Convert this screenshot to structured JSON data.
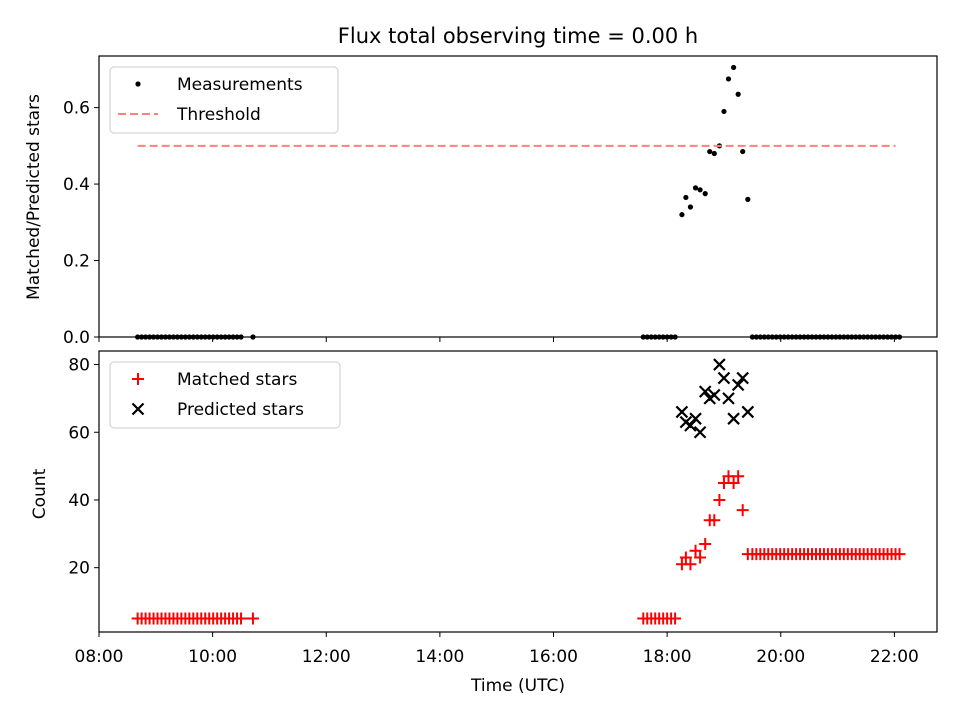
{
  "chart_data": [
    {
      "type": "scatter",
      "title": "Flux total observing time = 0.00 h",
      "ylabel": "Matched/Predicted stars",
      "xlabel": "",
      "xlim": [
        8.0,
        22.75
      ],
      "ylim": [
        0.0,
        0.735
      ],
      "yticks": [
        0.0,
        0.2,
        0.4,
        0.6
      ],
      "ytick_labels": [
        "0.0",
        "0.2",
        "0.4",
        "0.6"
      ],
      "legend_position": "upper-left",
      "series": [
        {
          "name": "Measurements",
          "marker": "dot",
          "color": "#000000",
          "x": [
            8.68,
            8.75,
            8.82,
            8.89,
            8.96,
            9.03,
            9.1,
            9.17,
            9.24,
            9.31,
            9.38,
            9.45,
            9.52,
            9.59,
            9.66,
            9.73,
            9.8,
            9.87,
            9.94,
            10.01,
            10.08,
            10.15,
            10.22,
            10.29,
            10.36,
            10.43,
            10.5,
            10.71,
            17.58,
            17.65,
            17.72,
            17.79,
            17.86,
            17.93,
            18.0,
            18.07,
            18.14,
            18.26,
            18.33,
            18.41,
            18.5,
            18.58,
            18.67,
            18.75,
            18.83,
            18.92,
            19.0,
            19.08,
            19.17,
            19.25,
            19.33,
            19.42,
            19.5,
            19.57,
            19.64,
            19.71,
            19.78,
            19.85,
            19.92,
            19.99,
            20.06,
            20.13,
            20.2,
            20.27,
            20.34,
            20.41,
            20.48,
            20.55,
            20.62,
            20.69,
            20.76,
            20.83,
            20.9,
            20.97,
            21.04,
            21.11,
            21.18,
            21.25,
            21.32,
            21.39,
            21.46,
            21.53,
            21.6,
            21.67,
            21.74,
            21.81,
            21.88,
            21.95,
            22.02,
            22.09
          ],
          "y": [
            0,
            0,
            0,
            0,
            0,
            0,
            0,
            0,
            0,
            0,
            0,
            0,
            0,
            0,
            0,
            0,
            0,
            0,
            0,
            0,
            0,
            0,
            0,
            0,
            0,
            0,
            0,
            0,
            0,
            0,
            0,
            0,
            0,
            0,
            0,
            0,
            0,
            0.32,
            0.365,
            0.34,
            0.39,
            0.385,
            0.375,
            0.485,
            0.48,
            0.5,
            0.59,
            0.675,
            0.705,
            0.635,
            0.485,
            0.36,
            0,
            0,
            0,
            0,
            0,
            0,
            0,
            0,
            0,
            0,
            0,
            0,
            0,
            0,
            0,
            0,
            0,
            0,
            0,
            0,
            0,
            0,
            0,
            0,
            0,
            0,
            0,
            0,
            0,
            0,
            0,
            0,
            0,
            0,
            0,
            0,
            0,
            0
          ]
        },
        {
          "name": "Threshold",
          "style": "dashed",
          "color": "#ff7f7f",
          "x": [
            8.68,
            22.02
          ],
          "y": [
            0.5,
            0.5
          ]
        }
      ]
    },
    {
      "type": "scatter",
      "title": "",
      "ylabel": "Count",
      "xlabel": "Time (UTC)",
      "xlim": [
        8.0,
        22.75
      ],
      "ylim": [
        1,
        84
      ],
      "yticks": [
        20,
        40,
        60,
        80
      ],
      "ytick_labels": [
        "20",
        "40",
        "60",
        "80"
      ],
      "xticks": [
        8,
        10,
        12,
        14,
        16,
        18,
        20,
        22
      ],
      "xtick_labels": [
        "08:00",
        "10:00",
        "12:00",
        "14:00",
        "16:00",
        "18:00",
        "20:00",
        "22:00"
      ],
      "legend_position": "upper-left",
      "series": [
        {
          "name": "Matched stars",
          "marker": "plus",
          "color": "#ff0000",
          "x": [
            8.68,
            8.75,
            8.82,
            8.89,
            8.96,
            9.03,
            9.1,
            9.17,
            9.24,
            9.31,
            9.38,
            9.45,
            9.52,
            9.59,
            9.66,
            9.73,
            9.8,
            9.87,
            9.94,
            10.01,
            10.08,
            10.15,
            10.22,
            10.29,
            10.36,
            10.43,
            10.5,
            10.71,
            17.58,
            17.65,
            17.72,
            17.79,
            17.86,
            17.93,
            18.0,
            18.07,
            18.14,
            18.26,
            18.33,
            18.41,
            18.5,
            18.58,
            18.67,
            18.75,
            18.83,
            18.92,
            19.0,
            19.08,
            19.17,
            19.25,
            19.33,
            19.42,
            19.5,
            19.57,
            19.64,
            19.71,
            19.78,
            19.85,
            19.92,
            19.99,
            20.06,
            20.13,
            20.2,
            20.27,
            20.34,
            20.41,
            20.48,
            20.55,
            20.62,
            20.69,
            20.76,
            20.83,
            20.9,
            20.97,
            21.04,
            21.11,
            21.18,
            21.25,
            21.32,
            21.39,
            21.46,
            21.53,
            21.6,
            21.67,
            21.74,
            21.81,
            21.88,
            21.95,
            22.02,
            22.09
          ],
          "y": [
            5,
            5,
            5,
            5,
            5,
            5,
            5,
            5,
            5,
            5,
            5,
            5,
            5,
            5,
            5,
            5,
            5,
            5,
            5,
            5,
            5,
            5,
            5,
            5,
            5,
            5,
            5,
            5,
            5,
            5,
            5,
            5,
            5,
            5,
            5,
            5,
            5,
            21,
            23,
            21,
            25,
            23,
            27,
            34,
            34,
            40,
            45,
            47,
            45,
            47,
            37,
            24,
            24,
            24,
            24,
            24,
            24,
            24,
            24,
            24,
            24,
            24,
            24,
            24,
            24,
            24,
            24,
            24,
            24,
            24,
            24,
            24,
            24,
            24,
            24,
            24,
            24,
            24,
            24,
            24,
            24,
            24,
            24,
            24,
            24,
            24,
            24,
            24,
            24,
            24
          ]
        },
        {
          "name": "Predicted stars",
          "marker": "x",
          "color": "#000000",
          "x": [
            18.26,
            18.33,
            18.41,
            18.5,
            18.58,
            18.67,
            18.75,
            18.83,
            18.92,
            19.0,
            19.08,
            19.17,
            19.25,
            19.33,
            19.42
          ],
          "y": [
            66,
            63,
            62,
            64,
            60,
            72,
            70,
            71,
            80,
            76,
            70,
            64,
            74,
            76,
            66
          ]
        }
      ]
    }
  ]
}
